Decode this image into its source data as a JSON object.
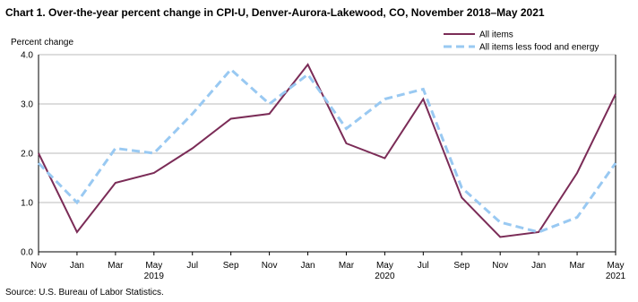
{
  "chart_data": {
    "type": "line",
    "title": "Chart 1. Over-the-year percent change in CPI-U, Denver-Aurora-Lakewood, CO, November 2018–May 2021",
    "y_label": "Percent change",
    "source": "Source: U.S. Bureau of Labor Statistics.",
    "categories": [
      "Nov",
      "Jan",
      "Mar",
      "May 2019",
      "Jul",
      "Sep",
      "Nov",
      "Jan",
      "Mar",
      "May 2020",
      "Jul",
      "Sep",
      "Nov",
      "Jan",
      "Mar",
      "May 2021"
    ],
    "series": [
      {
        "name": "All items",
        "color": "#7b2c57",
        "dashed": false,
        "values": [
          2.0,
          0.4,
          1.4,
          1.6,
          2.1,
          2.7,
          2.8,
          3.8,
          2.2,
          1.9,
          3.1,
          1.1,
          0.3,
          0.4,
          1.6,
          3.2
        ]
      },
      {
        "name": "All items less food and energy",
        "color": "#99c9f2",
        "dashed": true,
        "values": [
          1.8,
          1.0,
          2.1,
          2.0,
          2.8,
          3.7,
          3.0,
          3.6,
          2.5,
          3.1,
          3.3,
          1.3,
          0.6,
          0.4,
          0.7,
          1.8
        ]
      }
    ],
    "ylim": [
      0,
      4
    ],
    "yticks": [
      {
        "value": 0,
        "label": "0.0"
      },
      {
        "value": 1,
        "label": "1.0"
      },
      {
        "value": 2,
        "label": "2.0"
      },
      {
        "value": 3,
        "label": "3.0"
      },
      {
        "value": 4,
        "label": "4.0"
      }
    ],
    "grid": true,
    "legend": "top-right"
  }
}
